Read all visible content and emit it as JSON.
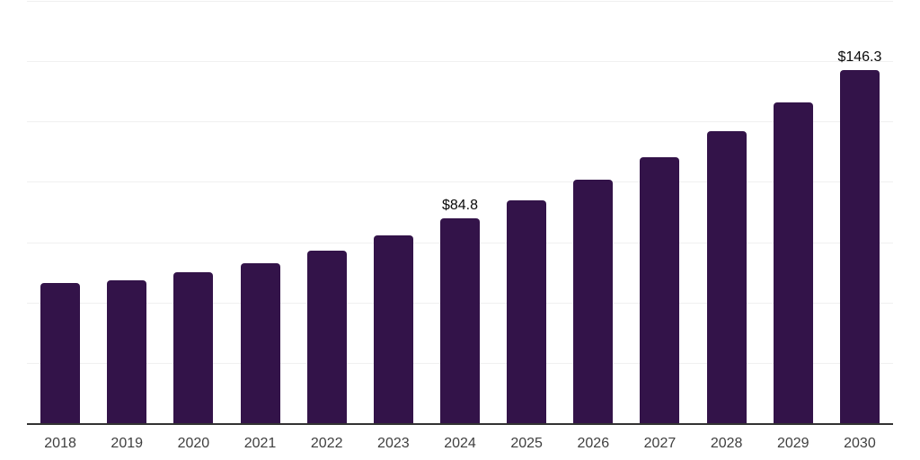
{
  "chart_data": {
    "type": "bar",
    "title": "",
    "xlabel": "",
    "ylabel": "",
    "categories": [
      "2018",
      "2019",
      "2020",
      "2021",
      "2022",
      "2023",
      "2024",
      "2025",
      "2026",
      "2027",
      "2028",
      "2029",
      "2030"
    ],
    "values": [
      58.1,
      59.1,
      62.7,
      66.2,
      71.6,
      77.8,
      84.8,
      92.5,
      100.8,
      110.2,
      120.9,
      132.8,
      146.3
    ],
    "data_labels": [
      {
        "category": "2024",
        "text": "$84.8"
      },
      {
        "category": "2030",
        "text": "$146.3"
      }
    ],
    "ylim": [
      0,
      175
    ],
    "grid_step": 25,
    "grid": "horizontal",
    "legend": "none",
    "y_axis_labels": "none",
    "colors": {
      "bar": "#331349",
      "axis_line": "#333333",
      "gridline": "#f0f0f0",
      "data_label": "#0a0a0a",
      "tick_label": "#3f3f3f",
      "background": "#ffffff"
    }
  }
}
